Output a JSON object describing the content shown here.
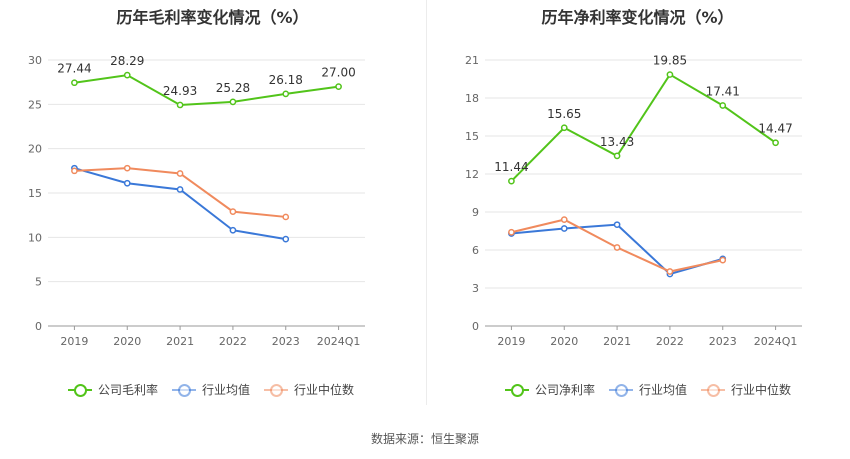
{
  "footer": {
    "source_label": "数据来源：恒生聚源"
  },
  "chart_data": [
    {
      "type": "line",
      "title": "历年毛利率变化情况（%）",
      "categories": [
        "2019",
        "2020",
        "2021",
        "2022",
        "2023",
        "2024Q1"
      ],
      "yticks": [
        "0",
        "5",
        "10",
        "15",
        "20",
        "25",
        "30"
      ],
      "ylim": [
        0,
        30
      ],
      "grid": true,
      "legend_position": "bottom",
      "series": [
        {
          "name": "公司毛利率",
          "color": "#52c41a",
          "values": [
            27.44,
            28.29,
            24.93,
            25.28,
            26.18,
            27.0
          ],
          "labels": [
            "27.44",
            "28.29",
            "24.93",
            "25.28",
            "26.18",
            "27.00"
          ]
        },
        {
          "name": "行业均值",
          "color": "#3a78d8",
          "values": [
            17.8,
            16.1,
            15.4,
            10.8,
            9.8,
            null
          ]
        },
        {
          "name": "行业中位数",
          "color": "#f08a5d",
          "values": [
            17.5,
            17.8,
            17.2,
            12.9,
            12.3,
            null
          ]
        }
      ]
    },
    {
      "type": "line",
      "title": "历年净利率变化情况（%）",
      "categories": [
        "2019",
        "2020",
        "2021",
        "2022",
        "2023",
        "2024Q1"
      ],
      "yticks": [
        "0",
        "3",
        "6",
        "9",
        "12",
        "15",
        "18",
        "21"
      ],
      "ylim": [
        0,
        21
      ],
      "grid": true,
      "legend_position": "bottom",
      "series": [
        {
          "name": "公司净利率",
          "color": "#52c41a",
          "values": [
            11.44,
            15.65,
            13.43,
            19.85,
            17.41,
            14.47
          ],
          "labels": [
            "11.44",
            "15.65",
            "13.43",
            "19.85",
            "17.41",
            "14.47"
          ]
        },
        {
          "name": "行业均值",
          "color": "#3a78d8",
          "values": [
            7.3,
            7.7,
            8.0,
            4.1,
            5.3,
            null
          ]
        },
        {
          "name": "行业中位数",
          "color": "#f08a5d",
          "values": [
            7.4,
            8.4,
            6.2,
            4.3,
            5.2,
            null
          ]
        }
      ]
    }
  ]
}
